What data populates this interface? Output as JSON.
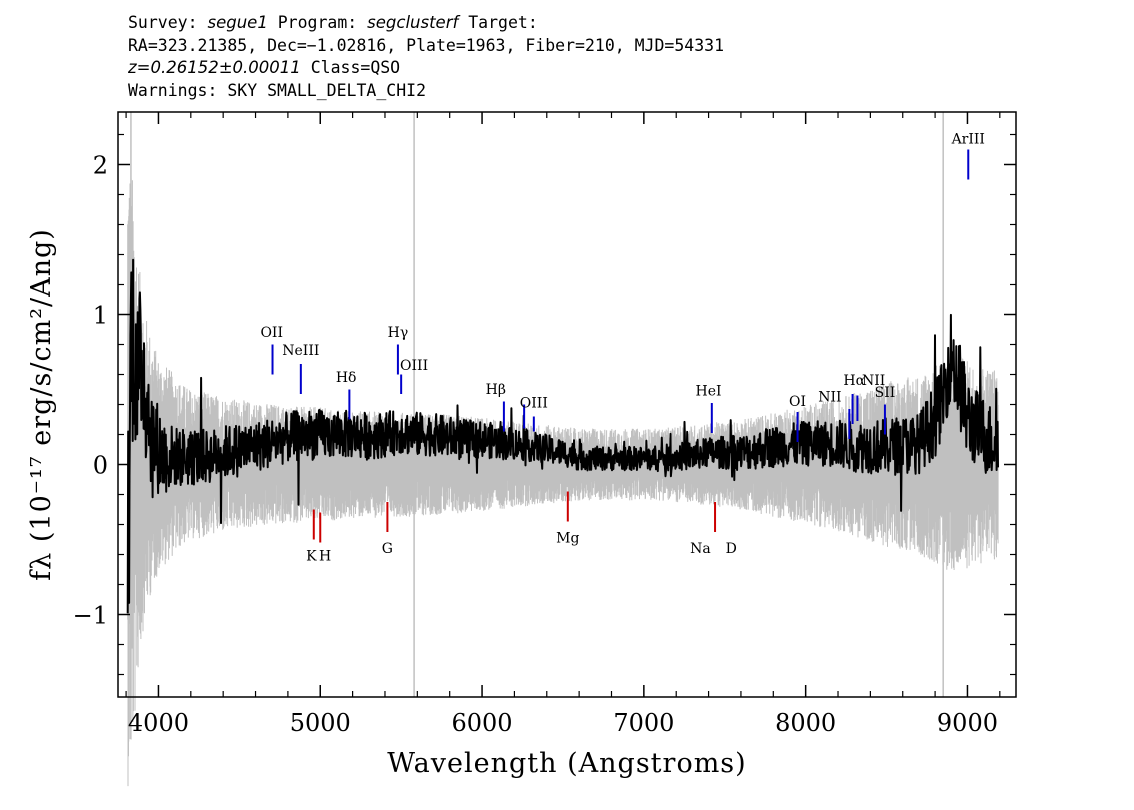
{
  "header": {
    "line1": {
      "survey_label": "Survey: ",
      "survey": "segue1",
      "program_label": " Program: ",
      "program": "segclusterf",
      "target_label": " Target:"
    },
    "line2": "RA=323.21385, Dec=−1.02816, Plate=1963, Fiber=210, MJD=54331",
    "line3": {
      "z": "z=0.26152±0.00011",
      "cls": " Class=QSO"
    },
    "line4": "Warnings: SKY SMALL_DELTA_CHI2"
  },
  "chart_data": {
    "type": "line",
    "xlabel": "Wavelength (Angstroms)",
    "ylabel": "fλ (10⁻¹⁷ erg/s/cm²/Ang)",
    "xlim": [
      3750,
      9300
    ],
    "ylim": [
      -1.55,
      2.35
    ],
    "x_ticks": [
      4000,
      5000,
      6000,
      7000,
      8000,
      9000
    ],
    "x_tick_labels": [
      "4000",
      "5000",
      "6000",
      "7000",
      "8000",
      "9000"
    ],
    "y_ticks": [
      -1,
      0,
      1,
      2
    ],
    "y_tick_labels": [
      "−1",
      "0",
      "1",
      "2"
    ],
    "grid": false,
    "legend": "none",
    "colors": {
      "flux": "#000000",
      "error": "#c0c0c0",
      "emission": "#0000cc",
      "absorption": "#cc0000"
    },
    "series": [
      {
        "name": "flux",
        "x": [
          3810,
          3830,
          3850,
          3870,
          3900,
          3930,
          3960,
          4000,
          4050,
          4100,
          4150,
          4200,
          4300,
          4400,
          4500,
          4600,
          4700,
          4800,
          4900,
          5000,
          5100,
          5200,
          5300,
          5400,
          5500,
          5600,
          5700,
          5800,
          5900,
          6000,
          6100,
          6200,
          6300,
          6400,
          6500,
          6600,
          6700,
          6800,
          6900,
          7000,
          7100,
          7200,
          7300,
          7400,
          7500,
          7600,
          7700,
          7800,
          7900,
          8000,
          8100,
          8200,
          8300,
          8400,
          8500,
          8600,
          8700,
          8800,
          8850,
          8900,
          8930,
          8960,
          9000,
          9050,
          9100,
          9150,
          9190
        ],
        "y": [
          -0.7,
          0.8,
          0.9,
          0.5,
          0.7,
          0.4,
          0.2,
          0.1,
          0.05,
          0.05,
          0.05,
          0.05,
          0.05,
          0.08,
          0.1,
          0.12,
          0.15,
          0.18,
          0.2,
          0.2,
          0.2,
          0.2,
          0.19,
          0.2,
          0.22,
          0.2,
          0.2,
          0.18,
          0.17,
          0.17,
          0.15,
          0.14,
          0.12,
          0.1,
          0.08,
          0.05,
          0.04,
          0.04,
          0.04,
          0.04,
          0.04,
          0.05,
          0.06,
          0.08,
          0.08,
          0.08,
          0.1,
          0.12,
          0.13,
          0.14,
          0.14,
          0.14,
          0.12,
          0.12,
          0.12,
          0.13,
          0.14,
          0.3,
          0.45,
          0.75,
          0.6,
          0.5,
          0.3,
          0.25,
          0.2,
          0.15,
          0.2
        ],
        "noise": [
          0.9,
          0.8,
          0.7,
          0.6,
          0.55,
          0.45,
          0.35,
          0.3,
          0.25,
          0.2,
          0.2,
          0.2,
          0.18,
          0.18,
          0.18,
          0.17,
          0.17,
          0.17,
          0.17,
          0.17,
          0.16,
          0.16,
          0.16,
          0.15,
          0.15,
          0.15,
          0.14,
          0.14,
          0.13,
          0.12,
          0.12,
          0.11,
          0.1,
          0.1,
          0.09,
          0.09,
          0.08,
          0.08,
          0.08,
          0.08,
          0.09,
          0.09,
          0.1,
          0.1,
          0.11,
          0.12,
          0.13,
          0.14,
          0.14,
          0.15,
          0.15,
          0.16,
          0.17,
          0.18,
          0.19,
          0.2,
          0.2,
          0.25,
          0.25,
          0.3,
          0.3,
          0.3,
          0.28,
          0.26,
          0.26,
          0.25,
          0.25
        ]
      },
      {
        "name": "error",
        "x": [
          3810,
          3830,
          3850,
          3870,
          3900,
          3930,
          3960,
          4000,
          4050,
          4100,
          4150,
          4200,
          4300,
          4400,
          4500,
          4600,
          4700,
          4800,
          4900,
          5000,
          5100,
          5200,
          5300,
          5400,
          5500,
          5600,
          5700,
          5800,
          5900,
          6000,
          6100,
          6200,
          6300,
          6400,
          6500,
          6600,
          6700,
          6800,
          6900,
          7000,
          7100,
          7200,
          7300,
          7400,
          7500,
          7600,
          7700,
          7800,
          7900,
          8000,
          8100,
          8200,
          8300,
          8400,
          8500,
          8600,
          8700,
          8800,
          8850,
          8900,
          8930,
          8960,
          9000,
          9050,
          9100,
          9150,
          9190
        ],
        "y": [
          1.8,
          1.7,
          1.5,
          1.2,
          0.95,
          0.8,
          0.7,
          0.6,
          0.55,
          0.5,
          0.45,
          0.42,
          0.4,
          0.38,
          0.36,
          0.35,
          0.34,
          0.33,
          0.32,
          0.32,
          0.31,
          0.3,
          0.3,
          0.29,
          0.29,
          0.29,
          0.28,
          0.28,
          0.27,
          0.26,
          0.25,
          0.24,
          0.23,
          0.22,
          0.21,
          0.2,
          0.2,
          0.2,
          0.2,
          0.2,
          0.2,
          0.21,
          0.22,
          0.23,
          0.24,
          0.25,
          0.27,
          0.29,
          0.31,
          0.33,
          0.35,
          0.37,
          0.4,
          0.43,
          0.46,
          0.48,
          0.5,
          0.55,
          0.58,
          0.6,
          0.6,
          0.6,
          0.58,
          0.56,
          0.55,
          0.54,
          0.54
        ]
      }
    ],
    "emission_lines": [
      {
        "label": "OII",
        "x": 4705,
        "y1": 0.6,
        "y2": 0.8,
        "lx": 4700,
        "ly": 0.85
      },
      {
        "label": "NeIII",
        "x": 4880,
        "y1": 0.47,
        "y2": 0.67,
        "lx": 4880,
        "ly": 0.73
      },
      {
        "label": "Hδ",
        "x": 5180,
        "y1": 0.3,
        "y2": 0.5,
        "lx": 5160,
        "ly": 0.55
      },
      {
        "label": "Hγ",
        "x": 5480,
        "y1": 0.6,
        "y2": 0.8,
        "lx": 5480,
        "ly": 0.85
      },
      {
        "label": "OIII",
        "x": 5500,
        "y1": 0.47,
        "y2": 0.6,
        "lx": 5580,
        "ly": 0.63
      },
      {
        "label": "Hβ",
        "x": 6135,
        "y1": 0.22,
        "y2": 0.42,
        "lx": 6085,
        "ly": 0.47
      },
      {
        "label": "OIII",
        "x": 6260,
        "y1": 0.24,
        "y2": 0.4,
        "lx": 6320,
        "ly": 0.38
      },
      {
        "label": "OIII",
        "x": 6320,
        "y1": 0.22,
        "y2": 0.32
      },
      {
        "label": "HeI",
        "x": 7420,
        "y1": 0.21,
        "y2": 0.41,
        "lx": 7400,
        "ly": 0.46
      },
      {
        "label": "OI",
        "x": 7950,
        "y1": 0.15,
        "y2": 0.35,
        "lx": 7950,
        "ly": 0.39
      },
      {
        "label": "NII",
        "x": 8270,
        "y1": 0.17,
        "y2": 0.37,
        "lx": 8150,
        "ly": 0.42
      },
      {
        "label": "Hα",
        "x": 8290,
        "y1": 0.27,
        "y2": 0.47,
        "lx": 8300,
        "ly": 0.53
      },
      {
        "label": "NII",
        "x": 8320,
        "y1": 0.29,
        "y2": 0.46,
        "lx": 8420,
        "ly": 0.53
      },
      {
        "label": "SII",
        "x": 8490,
        "y1": 0.2,
        "y2": 0.4,
        "lx": 8490,
        "ly": 0.45
      },
      {
        "label": "ArIII",
        "x": 9005,
        "y1": 1.9,
        "y2": 2.1,
        "lx": 9005,
        "ly": 2.14
      }
    ],
    "absorption_lines": [
      {
        "label": "K",
        "x": 4960,
        "y1": -0.5,
        "y2": -0.3,
        "lx": 4945,
        "ly": -0.64
      },
      {
        "label": "H",
        "x": 5000,
        "y1": -0.52,
        "y2": -0.32,
        "lx": 5030,
        "ly": -0.64
      },
      {
        "label": "G",
        "x": 5415,
        "y1": -0.45,
        "y2": -0.25,
        "lx": 5415,
        "ly": -0.59
      },
      {
        "label": "Mg",
        "x": 6530,
        "y1": -0.38,
        "y2": -0.18,
        "lx": 6530,
        "ly": -0.52
      },
      {
        "label": "Na",
        "x": 7440,
        "y1": -0.45,
        "y2": -0.25,
        "lx": 7350,
        "ly": -0.59
      },
      {
        "label": "D",
        "x": 7440,
        "lx": 7540,
        "ly": -0.59
      }
    ],
    "vertical_grey_lines": [
      3830,
      5580,
      8850
    ]
  }
}
